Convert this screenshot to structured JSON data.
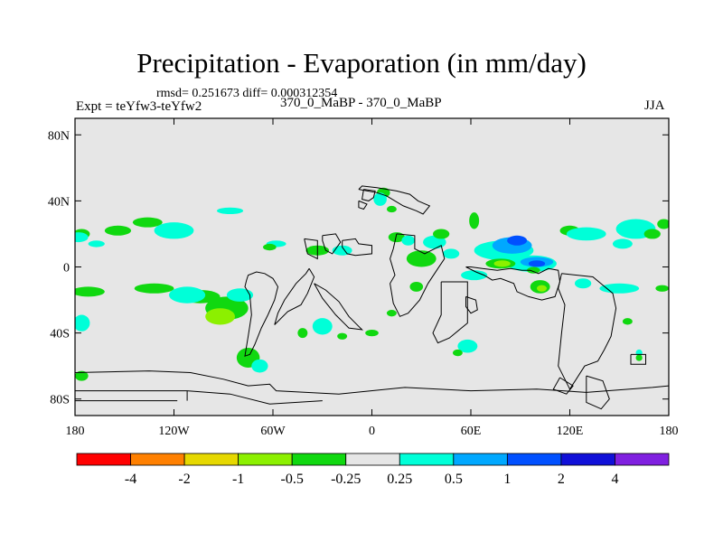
{
  "chart_data": {
    "type": "filled-contour-map",
    "title": "Precipitation - Evaporation (in mm/day)",
    "stats_text": "rmsd= 0.251673  diff= 0.000312354",
    "experiment_text": "Expt = teYfw3-teYfw2",
    "subtitle": "370_0_MaBP - 370_0_MaBP",
    "season": "JJA",
    "x_axis": {
      "ticks": [
        -180,
        -120,
        -60,
        0,
        60,
        120,
        180
      ],
      "tick_labels": [
        "180",
        "120W",
        "60W",
        "0",
        "60E",
        "120E",
        "180"
      ],
      "range": [
        -180,
        180
      ]
    },
    "y_axis": {
      "ticks": [
        80,
        40,
        0,
        -40,
        -80
      ],
      "tick_labels": [
        "80N",
        "40N",
        "0",
        "40S",
        "80S"
      ],
      "range": [
        -90,
        90
      ]
    },
    "colorbar": {
      "colors": [
        "#ff0000",
        "#ff8000",
        "#e6d800",
        "#8cf000",
        "#10d810",
        "#e6e6e6",
        "#00ffd8",
        "#00a8ff",
        "#0050ff",
        "#1010d8",
        "#8020e0"
      ],
      "labels": [
        "-4",
        "-2",
        "-1",
        "-0.5",
        "-0.25",
        "0.25",
        "0.5",
        "1",
        "2",
        "4"
      ]
    },
    "regions": [
      {
        "level": -0.25,
        "lon": -172,
        "lat": -15,
        "rx": 10,
        "ry": 3
      },
      {
        "level": -0.25,
        "lon": -132,
        "lat": -13,
        "rx": 12,
        "ry": 3
      },
      {
        "level": -0.25,
        "lon": -104,
        "lat": -18,
        "rx": 12,
        "ry": 4
      },
      {
        "level": 0.25,
        "lon": -112,
        "lat": -17,
        "rx": 11,
        "ry": 5
      },
      {
        "level": -0.25,
        "lon": -88,
        "lat": -25,
        "rx": 13,
        "ry": 7
      },
      {
        "level": -0.5,
        "lon": -92,
        "lat": -30,
        "rx": 9,
        "ry": 5
      },
      {
        "level": 0.25,
        "lon": -80,
        "lat": -17,
        "rx": 8,
        "ry": 4
      },
      {
        "level": -0.25,
        "lon": -176,
        "lat": 20,
        "rx": 5,
        "ry": 3
      },
      {
        "level": -0.25,
        "lon": -154,
        "lat": 22,
        "rx": 8,
        "ry": 3
      },
      {
        "level": -0.25,
        "lon": -136,
        "lat": 27,
        "rx": 9,
        "ry": 3
      },
      {
        "level": 0.25,
        "lon": -120,
        "lat": 22,
        "rx": 12,
        "ry": 5
      },
      {
        "level": 0.25,
        "lon": -178,
        "lat": 18,
        "rx": 6,
        "ry": 3
      },
      {
        "level": 0.25,
        "lon": -167,
        "lat": 14,
        "rx": 5,
        "ry": 2
      },
      {
        "level": 0.25,
        "lon": -86,
        "lat": 34,
        "rx": 8,
        "ry": 2
      },
      {
        "level": 0.25,
        "lon": -58,
        "lat": 14,
        "rx": 6,
        "ry": 2
      },
      {
        "level": 0.25,
        "lon": -176,
        "lat": -34,
        "rx": 5,
        "ry": 5
      },
      {
        "level": -0.25,
        "lon": -62,
        "lat": 12,
        "rx": 4,
        "ry": 2
      },
      {
        "level": -0.25,
        "lon": -33,
        "lat": 10,
        "rx": 7,
        "ry": 3
      },
      {
        "level": 0.25,
        "lon": -18,
        "lat": 10,
        "rx": 6,
        "ry": 3
      },
      {
        "level": 0.25,
        "lon": -30,
        "lat": -36,
        "rx": 6,
        "ry": 5
      },
      {
        "level": -0.25,
        "lon": -42,
        "lat": -40,
        "rx": 3,
        "ry": 3
      },
      {
        "level": -0.25,
        "lon": -75,
        "lat": -55,
        "rx": 7,
        "ry": 6
      },
      {
        "level": 0.25,
        "lon": -68,
        "lat": -60,
        "rx": 5,
        "ry": 4
      },
      {
        "level": -0.25,
        "lon": -176,
        "lat": -66,
        "rx": 4,
        "ry": 3
      },
      {
        "level": -0.25,
        "lon": 7,
        "lat": 45,
        "rx": 4,
        "ry": 3
      },
      {
        "level": 0.25,
        "lon": 5,
        "lat": 41,
        "rx": 4,
        "ry": 4
      },
      {
        "level": -0.25,
        "lon": 12,
        "lat": 35,
        "rx": 3,
        "ry": 2
      },
      {
        "level": -0.25,
        "lon": 15,
        "lat": 18,
        "rx": 5,
        "ry": 3
      },
      {
        "level": 0.25,
        "lon": 22,
        "lat": 16,
        "rx": 4,
        "ry": 3
      },
      {
        "level": -0.25,
        "lon": 30,
        "lat": 5,
        "rx": 9,
        "ry": 5
      },
      {
        "level": -0.25,
        "lon": 27,
        "lat": -12,
        "rx": 4,
        "ry": 3
      },
      {
        "level": -0.25,
        "lon": 12,
        "lat": -28,
        "rx": 3,
        "ry": 2
      },
      {
        "level": -0.25,
        "lon": 0,
        "lat": -40,
        "rx": 4,
        "ry": 2
      },
      {
        "level": -0.25,
        "lon": -18,
        "lat": -42,
        "rx": 3,
        "ry": 2
      },
      {
        "level": 0.25,
        "lon": 38,
        "lat": 15,
        "rx": 7,
        "ry": 4
      },
      {
        "level": -0.25,
        "lon": 42,
        "lat": 20,
        "rx": 5,
        "ry": 3
      },
      {
        "level": 0.25,
        "lon": 48,
        "lat": 8,
        "rx": 5,
        "ry": 3
      },
      {
        "level": 0.25,
        "lon": 62,
        "lat": -5,
        "rx": 8,
        "ry": 3
      },
      {
        "level": -0.25,
        "lon": 62,
        "lat": 28,
        "rx": 3,
        "ry": 5
      },
      {
        "level": 0.25,
        "lon": 80,
        "lat": 10,
        "rx": 18,
        "ry": 6
      },
      {
        "level": 0.5,
        "lon": 85,
        "lat": 13,
        "rx": 12,
        "ry": 5
      },
      {
        "level": 1,
        "lon": 88,
        "lat": 16,
        "rx": 6,
        "ry": 3
      },
      {
        "level": 0.25,
        "lon": 97,
        "lat": 2,
        "rx": 15,
        "ry": 5
      },
      {
        "level": 0.5,
        "lon": 100,
        "lat": 3,
        "rx": 10,
        "ry": 3
      },
      {
        "level": 1,
        "lon": 100,
        "lat": 2,
        "rx": 5,
        "ry": 2
      },
      {
        "level": -0.25,
        "lon": 78,
        "lat": 2,
        "rx": 9,
        "ry": 3
      },
      {
        "level": -0.5,
        "lon": 79,
        "lat": 2,
        "rx": 5,
        "ry": 2
      },
      {
        "level": -0.25,
        "lon": 102,
        "lat": -12,
        "rx": 6,
        "ry": 4
      },
      {
        "level": -0.5,
        "lon": 103,
        "lat": -13,
        "rx": 3,
        "ry": 2
      },
      {
        "level": -0.25,
        "lon": 98,
        "lat": -2,
        "rx": 4,
        "ry": 2
      },
      {
        "level": -0.25,
        "lon": 120,
        "lat": 22,
        "rx": 6,
        "ry": 3
      },
      {
        "level": 0.25,
        "lon": 130,
        "lat": 20,
        "rx": 12,
        "ry": 4
      },
      {
        "level": 0.25,
        "lon": 160,
        "lat": 23,
        "rx": 12,
        "ry": 6
      },
      {
        "level": -0.25,
        "lon": 170,
        "lat": 20,
        "rx": 5,
        "ry": 3
      },
      {
        "level": -0.25,
        "lon": 177,
        "lat": 26,
        "rx": 4,
        "ry": 3
      },
      {
        "level": 0.25,
        "lon": 150,
        "lat": -13,
        "rx": 12,
        "ry": 3
      },
      {
        "level": -0.25,
        "lon": 176,
        "lat": -13,
        "rx": 4,
        "ry": 2
      },
      {
        "level": 0.25,
        "lon": 152,
        "lat": 14,
        "rx": 6,
        "ry": 3
      },
      {
        "level": 0.25,
        "lon": 128,
        "lat": -10,
        "rx": 5,
        "ry": 3
      },
      {
        "level": -0.25,
        "lon": 155,
        "lat": -33,
        "rx": 3,
        "ry": 2
      },
      {
        "level": 0.25,
        "lon": 58,
        "lat": -48,
        "rx": 6,
        "ry": 4
      },
      {
        "level": -0.25,
        "lon": 52,
        "lat": -52,
        "rx": 3,
        "ry": 2
      },
      {
        "level": 0.25,
        "lon": 162,
        "lat": -52,
        "rx": 2,
        "ry": 2
      },
      {
        "level": -0.25,
        "lon": 162,
        "lat": -55,
        "rx": 2,
        "ry": 2
      }
    ],
    "coastlines": [
      [
        [
          -18,
          16
        ],
        [
          -10,
          17
        ],
        [
          -8,
          14
        ],
        [
          0,
          13
        ],
        [
          0,
          8
        ],
        [
          -10,
          7
        ],
        [
          -15,
          8
        ],
        [
          -18,
          12
        ],
        [
          -18,
          16
        ]
      ],
      [
        [
          15,
          20
        ],
        [
          26,
          19
        ],
        [
          26,
          11
        ],
        [
          32,
          8
        ],
        [
          38,
          11
        ],
        [
          42,
          13
        ],
        [
          44,
          5
        ],
        [
          40,
          -1
        ],
        [
          34,
          -10
        ],
        [
          29,
          -20
        ],
        [
          22,
          -28
        ],
        [
          17,
          -30
        ],
        [
          13,
          -22
        ],
        [
          11,
          -10
        ],
        [
          14,
          -5
        ],
        [
          11,
          5
        ],
        [
          13,
          11
        ],
        [
          15,
          20
        ]
      ],
      [
        [
          -8,
          47
        ],
        [
          -6,
          49
        ],
        [
          3,
          48
        ],
        [
          15,
          46
        ],
        [
          23,
          44
        ],
        [
          28,
          40
        ],
        [
          35,
          37
        ],
        [
          31,
          32
        ],
        [
          27,
          34
        ],
        [
          19,
          37
        ],
        [
          9,
          43
        ],
        [
          3,
          45
        ],
        [
          -8,
          47
        ]
      ],
      [
        [
          -76,
          -8
        ],
        [
          -75,
          -5
        ],
        [
          -70,
          -3
        ],
        [
          -65,
          -4
        ],
        [
          -60,
          -7
        ],
        [
          -57,
          -12
        ],
        [
          -59,
          -20
        ],
        [
          -63,
          -29
        ],
        [
          -67,
          -37
        ],
        [
          -71,
          -47
        ],
        [
          -74,
          -53
        ],
        [
          -77,
          -54
        ],
        [
          -75,
          -42
        ],
        [
          -73,
          -29
        ],
        [
          -74,
          -17
        ],
        [
          -77,
          -12
        ],
        [
          -76,
          -8
        ]
      ],
      [
        [
          -38,
          -1
        ],
        [
          -35,
          -6
        ],
        [
          -39,
          -16
        ],
        [
          -43,
          -23
        ],
        [
          -51,
          -27
        ],
        [
          -59,
          -35
        ],
        [
          -57,
          -28
        ],
        [
          -53,
          -20
        ],
        [
          -46,
          -10
        ],
        [
          -40,
          -4
        ],
        [
          -38,
          -1
        ]
      ],
      [
        [
          -35,
          -10
        ],
        [
          -28,
          -14
        ],
        [
          -20,
          -21
        ],
        [
          -14,
          -30
        ],
        [
          -8,
          -36
        ],
        [
          -6,
          -38
        ],
        [
          -14,
          -37
        ],
        [
          -22,
          -29
        ],
        [
          -30,
          -19
        ],
        [
          -35,
          -10
        ]
      ],
      [
        [
          -30,
          19
        ],
        [
          -22,
          20
        ],
        [
          -19,
          15
        ],
        [
          -24,
          8
        ],
        [
          -28,
          10
        ],
        [
          -30,
          16
        ],
        [
          -30,
          19
        ]
      ],
      [
        [
          -41,
          17
        ],
        [
          -33,
          16
        ],
        [
          -33,
          5
        ],
        [
          -39,
          8
        ],
        [
          -41,
          17
        ]
      ],
      [
        [
          42,
          -9
        ],
        [
          58,
          -9
        ],
        [
          58,
          -34
        ],
        [
          47,
          -43
        ],
        [
          40,
          -46
        ],
        [
          37,
          -40
        ],
        [
          42,
          -29
        ],
        [
          42,
          -9
        ]
      ],
      [
        [
          57,
          0
        ],
        [
          63,
          -3
        ],
        [
          68,
          -5
        ],
        [
          73,
          -8
        ],
        [
          78,
          -7
        ],
        [
          86,
          -10
        ],
        [
          88,
          -15
        ],
        [
          95,
          -18
        ],
        [
          103,
          -20
        ],
        [
          111,
          -18
        ],
        [
          114,
          -9
        ],
        [
          113,
          -2
        ],
        [
          107,
          -1
        ],
        [
          101,
          -4
        ],
        [
          96,
          -2
        ],
        [
          91,
          -2
        ],
        [
          84,
          -1
        ],
        [
          76,
          -2
        ],
        [
          67,
          -1
        ],
        [
          60,
          0
        ],
        [
          57,
          0
        ]
      ],
      [
        [
          115,
          -4
        ],
        [
          134,
          -6
        ],
        [
          140,
          -11
        ],
        [
          146,
          -16
        ],
        [
          148,
          -25
        ],
        [
          145,
          -42
        ],
        [
          141,
          -50
        ],
        [
          137,
          -57
        ],
        [
          129,
          -60
        ],
        [
          120,
          -74
        ],
        [
          113,
          -60
        ],
        [
          115,
          -40
        ],
        [
          117,
          -23
        ],
        [
          113,
          -13
        ],
        [
          115,
          -4
        ]
      ],
      [
        [
          114,
          -67
        ],
        [
          122,
          -72
        ],
        [
          118,
          -77
        ],
        [
          110,
          -74
        ],
        [
          114,
          -67
        ]
      ],
      [
        [
          130,
          -66
        ],
        [
          140,
          -69
        ],
        [
          144,
          -80
        ],
        [
          139,
          -86
        ],
        [
          130,
          -82
        ],
        [
          130,
          -66
        ]
      ],
      [
        [
          157,
          -53
        ],
        [
          166,
          -53
        ],
        [
          166,
          -59
        ],
        [
          157,
          -59
        ],
        [
          157,
          -53
        ]
      ],
      [
        [
          -5,
          47
        ],
        [
          2,
          46
        ],
        [
          1,
          42
        ],
        [
          -2,
          40
        ],
        [
          -6,
          41
        ],
        [
          -5,
          47
        ]
      ],
      [
        [
          -8,
          40
        ],
        [
          -3,
          38
        ],
        [
          -5,
          35
        ],
        [
          -8,
          36
        ],
        [
          -8,
          40
        ]
      ],
      [
        [
          -180,
          -64
        ],
        [
          -135,
          -63
        ],
        [
          -110,
          -64
        ],
        [
          -90,
          -68
        ],
        [
          -75,
          -72
        ],
        [
          -62,
          -71
        ],
        [
          -58,
          -75
        ],
        [
          -20,
          -77
        ],
        [
          20,
          -73
        ],
        [
          60,
          -75
        ],
        [
          100,
          -74
        ],
        [
          130,
          -76
        ],
        [
          170,
          -73
        ],
        [
          180,
          -72
        ],
        [
          180,
          -90
        ],
        [
          -180,
          -90
        ],
        [
          -180,
          -64
        ]
      ],
      [
        [
          -180,
          -75
        ],
        [
          -112,
          -75
        ],
        [
          -86,
          -77
        ],
        [
          -62,
          -83
        ],
        [
          -30,
          -81
        ]
      ],
      [
        [
          -180,
          -81
        ],
        [
          -118,
          -81
        ]
      ],
      [
        [
          -112,
          -75
        ],
        [
          -112,
          -81
        ]
      ],
      [
        [
          57,
          -18
        ],
        [
          63,
          -20
        ],
        [
          64,
          -26
        ],
        [
          60,
          -28
        ],
        [
          57,
          -24
        ],
        [
          57,
          -18
        ]
      ]
    ]
  }
}
